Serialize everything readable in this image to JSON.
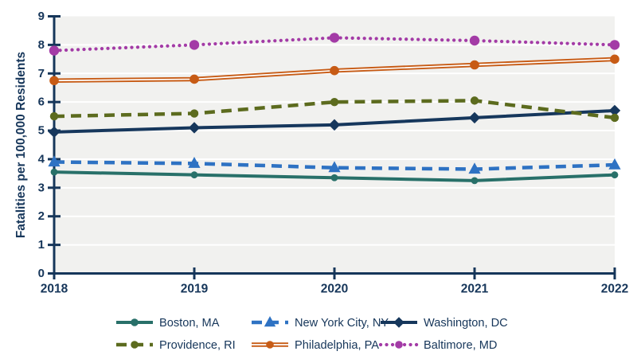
{
  "chart_data": {
    "type": "line",
    "title": "",
    "xlabel": "",
    "ylabel": "Fatalities per 100,000 Residents",
    "categories": [
      "2018",
      "2019",
      "2020",
      "2021",
      "2022"
    ],
    "ylim": [
      0,
      9
    ],
    "ytick_interval": 1,
    "grid": "horizontal",
    "legend_position": "bottom",
    "plot_bg_color": "#f1f1ef",
    "grid_color": "#ffffff",
    "axis_color": "#16365A",
    "text_color": "#16365A",
    "series": [
      {
        "name": "Boston, MA",
        "color": "#287069",
        "line_style": "solid",
        "marker": "circle",
        "values": [
          3.55,
          3.45,
          3.35,
          3.25,
          3.45
        ]
      },
      {
        "name": "New York City, NY",
        "color": "#2E72C3",
        "line_style": "dashed",
        "marker": "triangle",
        "values": [
          3.9,
          3.85,
          3.7,
          3.65,
          3.8
        ]
      },
      {
        "name": "Washington, DC",
        "color": "#16375C",
        "line_style": "solid",
        "marker": "diamond",
        "values": [
          4.95,
          5.1,
          5.2,
          5.45,
          5.7
        ]
      },
      {
        "name": "Providence, RI",
        "color": "#5C6B1E",
        "line_style": "dashed",
        "marker": "circle",
        "values": [
          5.5,
          5.6,
          6.0,
          6.05,
          5.45
        ]
      },
      {
        "name": "Philadelphia, PA",
        "color": "#C75B15",
        "line_style": "double",
        "marker": "circle",
        "values": [
          6.75,
          6.8,
          7.1,
          7.3,
          7.5
        ]
      },
      {
        "name": "Baltimore, MD",
        "color": "#A33BA6",
        "line_style": "dotted",
        "marker": "circle",
        "values": [
          7.8,
          8.0,
          8.25,
          8.15,
          8.0
        ]
      }
    ]
  }
}
